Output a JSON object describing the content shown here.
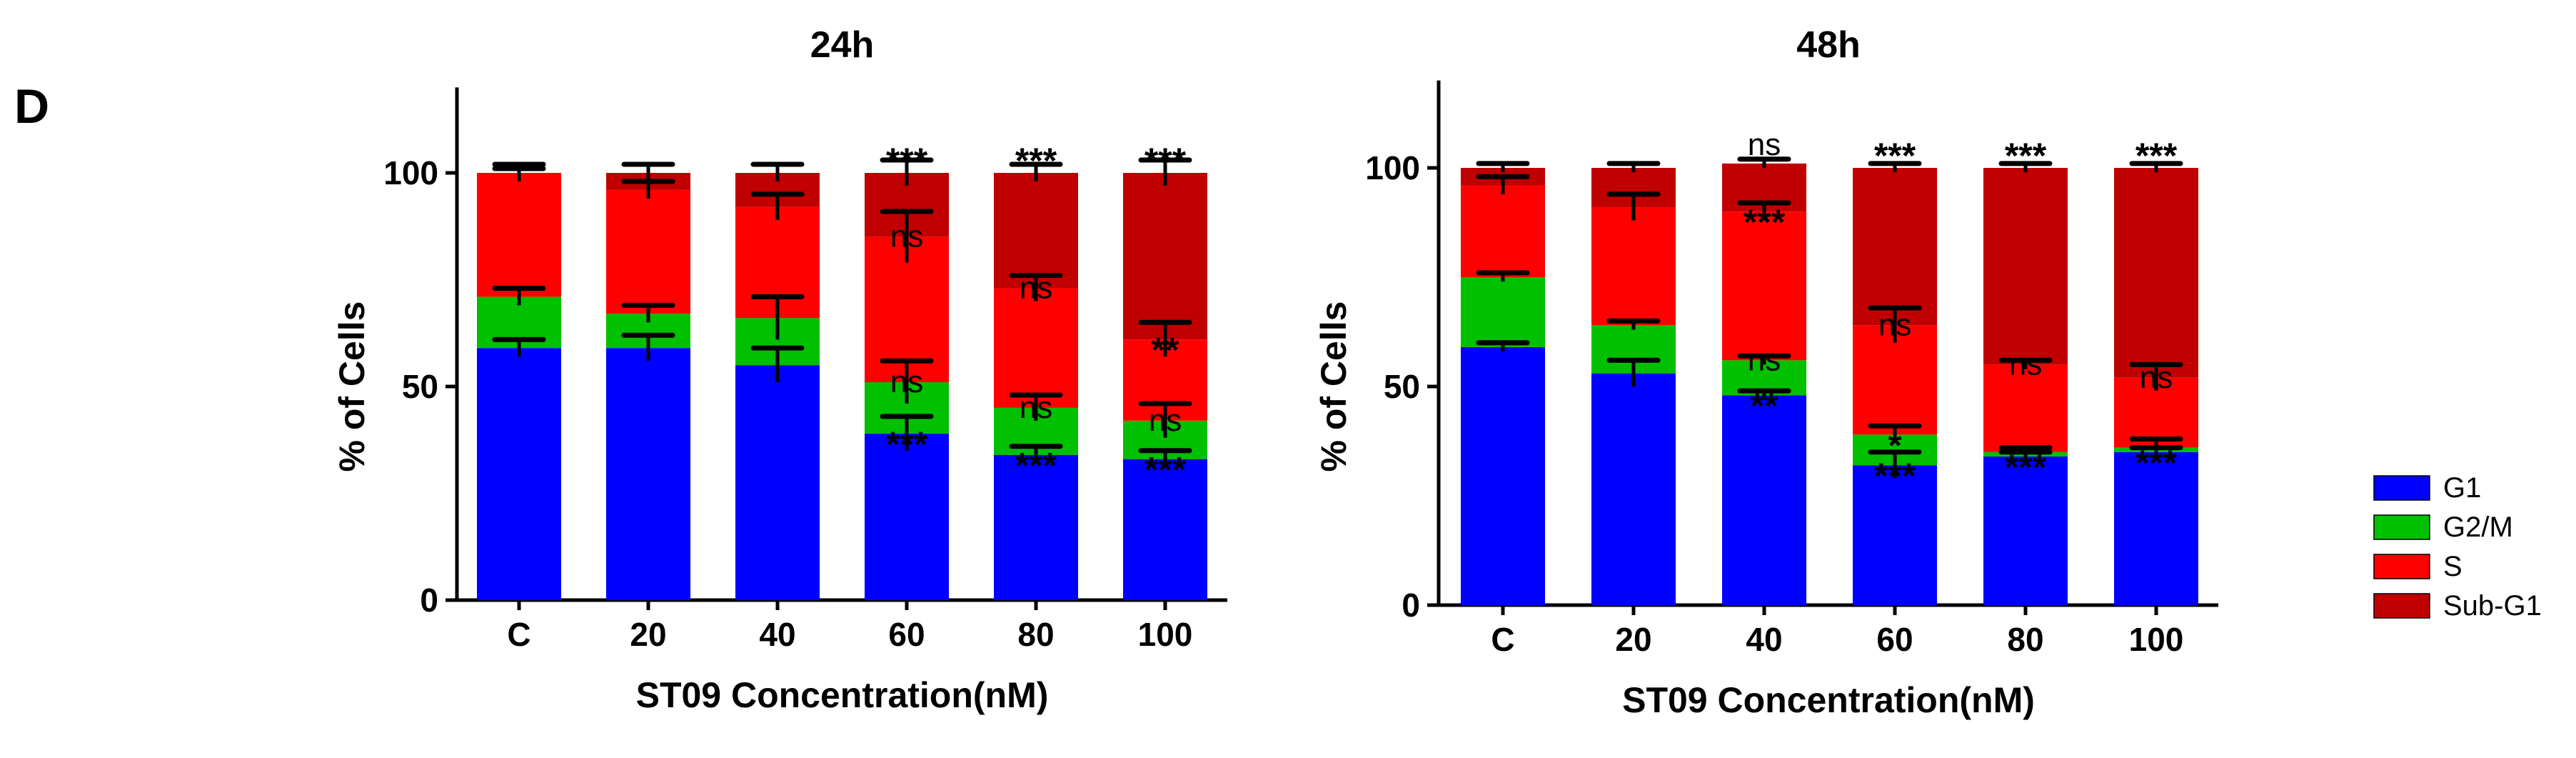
{
  "panel_label": "D",
  "legend": {
    "items": [
      {
        "label": "G1",
        "color": "#0000ff"
      },
      {
        "label": "G2/M",
        "color": "#00c000"
      },
      {
        "label": "S",
        "color": "#ff0000"
      },
      {
        "label": "Sub-G1",
        "color": "#c00000"
      }
    ]
  },
  "chart_data": [
    {
      "type": "bar",
      "stacked": true,
      "title": "24h",
      "xlabel": "ST09 Concentration(nM)",
      "ylabel": "% of Cells",
      "ylim": [
        0,
        120
      ],
      "yticks": [
        0,
        50,
        100
      ],
      "categories": [
        "C",
        "20",
        "40",
        "60",
        "80",
        "100"
      ],
      "series": [
        {
          "name": "G1",
          "color": "#0000ff",
          "values": [
            59,
            59,
            55,
            39,
            34,
            33
          ],
          "errors": [
            2,
            3,
            4,
            4,
            2,
            2
          ]
        },
        {
          "name": "G2/M",
          "color": "#00c000",
          "values": [
            12,
            8,
            11,
            12,
            11,
            9
          ],
          "errors": [
            2,
            2,
            5,
            5,
            3,
            4
          ]
        },
        {
          "name": "S",
          "color": "#ff0000",
          "values": [
            29,
            29,
            26,
            34,
            28,
            19
          ],
          "errors": [
            2,
            2,
            3,
            6,
            3,
            4
          ]
        },
        {
          "name": "Sub-G1",
          "color": "#c00000",
          "values": [
            0,
            4,
            8,
            15,
            27,
            39
          ],
          "errors": [
            1,
            2,
            2,
            3,
            2,
            3
          ]
        }
      ],
      "annotations": [
        {
          "category": "60",
          "series": "G1",
          "text": "***"
        },
        {
          "category": "60",
          "series": "G2/M",
          "text": "ns"
        },
        {
          "category": "60",
          "series": "S",
          "text": "ns"
        },
        {
          "category": "60",
          "series": "Sub-G1",
          "text": "***"
        },
        {
          "category": "80",
          "series": "G1",
          "text": "***"
        },
        {
          "category": "80",
          "series": "G2/M",
          "text": "ns"
        },
        {
          "category": "80",
          "series": "S",
          "text": "ns"
        },
        {
          "category": "80",
          "series": "Sub-G1",
          "text": "***"
        },
        {
          "category": "100",
          "series": "G1",
          "text": "***"
        },
        {
          "category": "100",
          "series": "G2/M",
          "text": "ns"
        },
        {
          "category": "100",
          "series": "S",
          "text": "**"
        },
        {
          "category": "100",
          "series": "Sub-G1",
          "text": "***"
        }
      ]
    },
    {
      "type": "bar",
      "stacked": true,
      "title": "48h",
      "xlabel": "ST09 Concentration(nM)",
      "ylabel": "% of Cells",
      "ylim": [
        0,
        120
      ],
      "yticks": [
        0,
        50,
        100
      ],
      "categories": [
        "C",
        "20",
        "40",
        "60",
        "80",
        "100"
      ],
      "series": [
        {
          "name": "G1",
          "color": "#0000ff",
          "values": [
            59,
            53,
            48,
            32,
            34,
            35
          ],
          "errors": [
            1,
            3,
            1,
            3,
            1,
            1
          ]
        },
        {
          "name": "G2/M",
          "color": "#00c000",
          "values": [
            16,
            11,
            8,
            7,
            1,
            1
          ],
          "errors": [
            1,
            1,
            1,
            2,
            1,
            2
          ]
        },
        {
          "name": "S",
          "color": "#ff0000",
          "values": [
            21,
            27,
            34,
            25,
            20,
            16
          ],
          "errors": [
            2,
            3,
            2,
            4,
            1,
            3
          ]
        },
        {
          "name": "Sub-G1",
          "color": "#c00000",
          "values": [
            4,
            9,
            11,
            36,
            45,
            48
          ],
          "errors": [
            1,
            1,
            1,
            1,
            1,
            1
          ]
        }
      ],
      "annotations": [
        {
          "category": "40",
          "series": "G1",
          "text": "**"
        },
        {
          "category": "40",
          "series": "G2/M",
          "text": "ns"
        },
        {
          "category": "40",
          "series": "S",
          "text": "***"
        },
        {
          "category": "40",
          "series": "Sub-G1",
          "text": "ns"
        },
        {
          "category": "60",
          "series": "G1",
          "text": "***"
        },
        {
          "category": "60",
          "series": "G2/M",
          "text": "*"
        },
        {
          "category": "60",
          "series": "S",
          "text": "ns"
        },
        {
          "category": "60",
          "series": "Sub-G1",
          "text": "***"
        },
        {
          "category": "80",
          "series": "G1",
          "text": "***"
        },
        {
          "category": "80",
          "series": "S",
          "text": "ns"
        },
        {
          "category": "80",
          "series": "Sub-G1",
          "text": "***"
        },
        {
          "category": "100",
          "series": "G1",
          "text": "***"
        },
        {
          "category": "100",
          "series": "S",
          "text": "ns"
        },
        {
          "category": "100",
          "series": "Sub-G1",
          "text": "***"
        }
      ]
    }
  ]
}
